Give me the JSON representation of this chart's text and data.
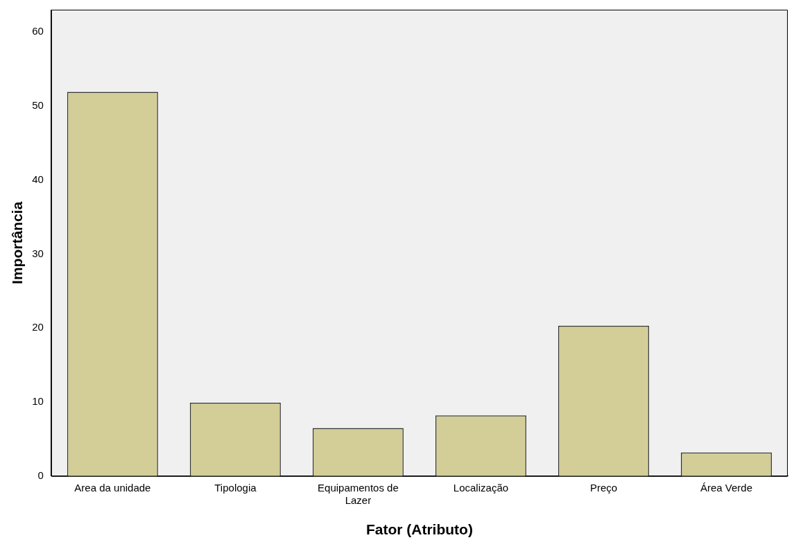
{
  "chart_data": {
    "type": "bar",
    "xlabel": "Fator (Atributo)",
    "ylabel": "Importância",
    "categories": [
      "Area da unidade",
      "Tipologia",
      "Equipamentos de Lazer",
      "Localização",
      "Preço",
      "Área Verde"
    ],
    "values": [
      51.9,
      9.9,
      6.5,
      8.2,
      20.3,
      3.2
    ],
    "color": "#d3ce97",
    "ylim": [
      0,
      63
    ],
    "yticks": [
      0,
      10,
      20,
      30,
      40,
      50,
      60
    ],
    "grid": false,
    "legend": false
  }
}
